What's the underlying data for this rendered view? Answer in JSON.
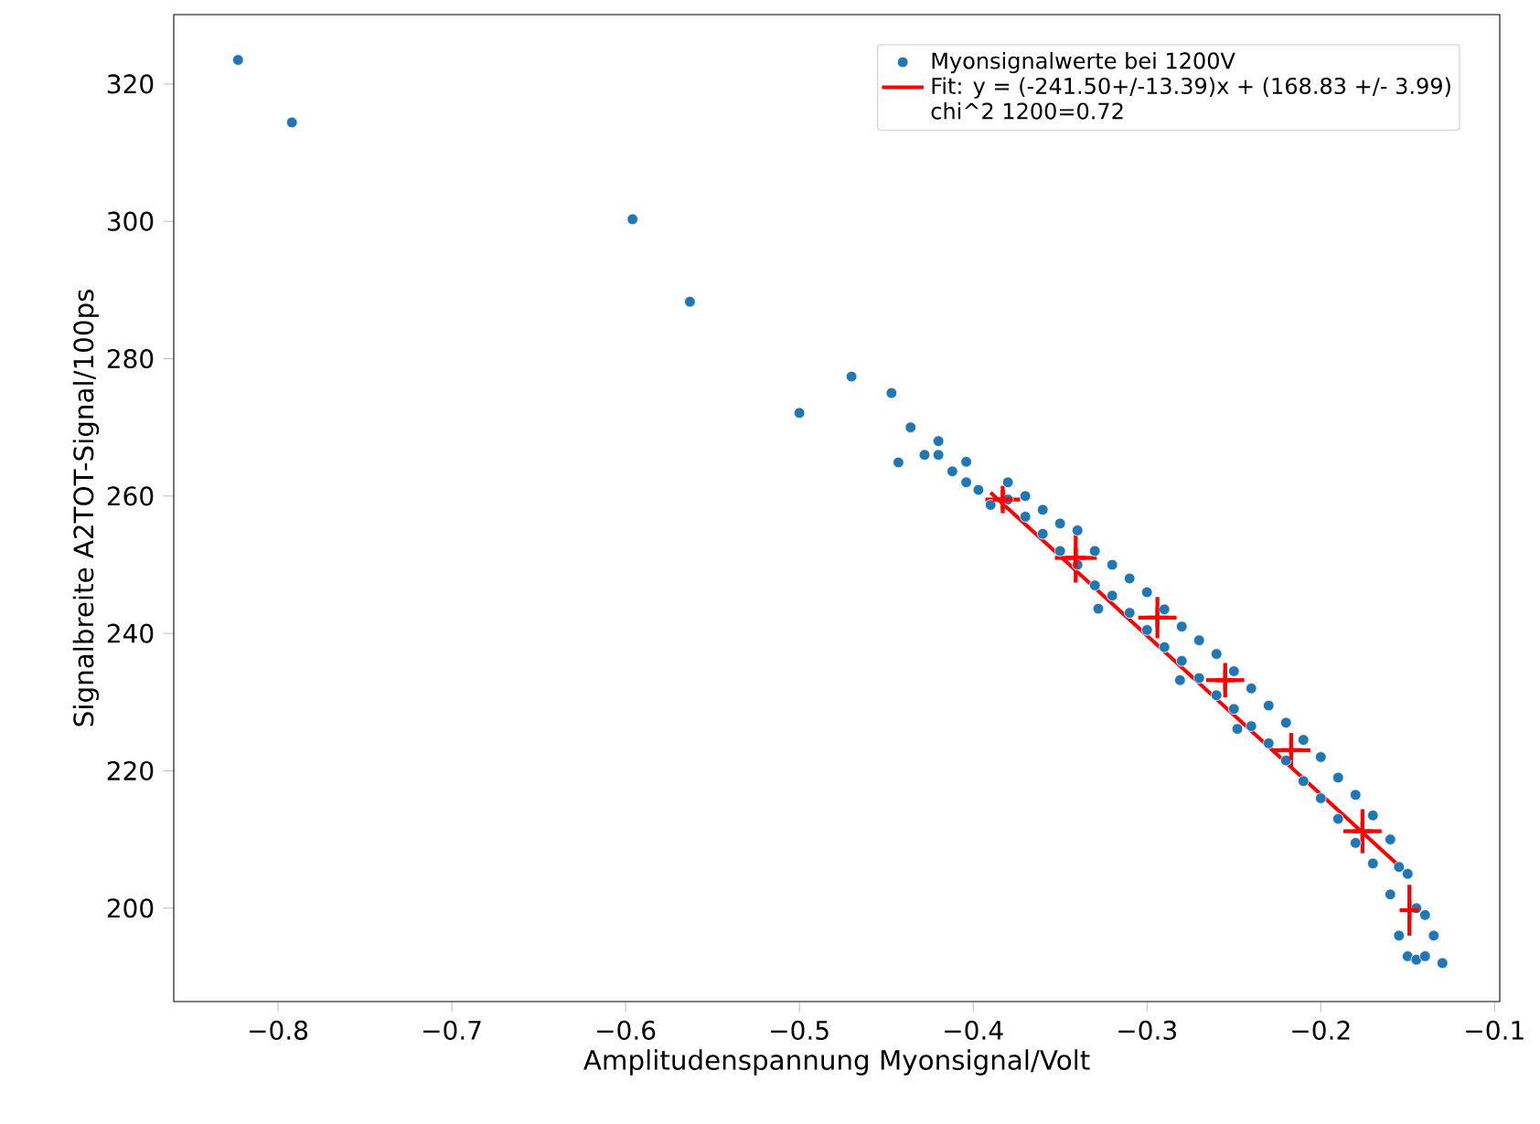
{
  "chart_data": {
    "type": "scatter",
    "xlabel": "Amplitudenspannung Myonsignal/Volt",
    "ylabel": "Signalbreite A2TOT-Signal/100ps",
    "xlim": [
      -0.86,
      -0.097
    ],
    "ylim": [
      186.4,
      330.1
    ],
    "xticks": [
      {
        "value": -0.8,
        "label": "−0.8"
      },
      {
        "value": -0.7,
        "label": "−0.7"
      },
      {
        "value": -0.6,
        "label": "−0.6"
      },
      {
        "value": -0.5,
        "label": "−0.5"
      },
      {
        "value": -0.4,
        "label": "−0.4"
      },
      {
        "value": -0.3,
        "label": "−0.3"
      },
      {
        "value": -0.2,
        "label": "−0.2"
      },
      {
        "value": -0.1,
        "label": "−0.1"
      }
    ],
    "yticks": [
      200,
      220,
      240,
      260,
      280,
      300,
      320
    ],
    "legend": "top right",
    "grid": false,
    "annotations": [
      "chi^2 1200=0.72"
    ],
    "series": [
      {
        "name": "Myonsignalwerte bei 1200V",
        "marker": "circle",
        "color": "#1f77b4",
        "x": [
          -0.823,
          -0.792,
          -0.596,
          -0.563,
          -0.5,
          -0.47,
          -0.447,
          -0.436,
          -0.443,
          -0.428,
          -0.42,
          -0.42,
          -0.412,
          -0.404,
          -0.404,
          -0.397,
          -0.39,
          -0.38,
          -0.38,
          -0.37,
          -0.37,
          -0.36,
          -0.36,
          -0.35,
          -0.35,
          -0.34,
          -0.34,
          -0.33,
          -0.33,
          -0.328,
          -0.32,
          -0.32,
          -0.31,
          -0.31,
          -0.3,
          -0.3,
          -0.29,
          -0.29,
          -0.28,
          -0.28,
          -0.281,
          -0.27,
          -0.27,
          -0.26,
          -0.26,
          -0.25,
          -0.25,
          -0.248,
          -0.24,
          -0.24,
          -0.23,
          -0.23,
          -0.22,
          -0.22,
          -0.21,
          -0.21,
          -0.2,
          -0.2,
          -0.19,
          -0.19,
          -0.18,
          -0.18,
          -0.17,
          -0.17,
          -0.16,
          -0.16,
          -0.155,
          -0.155,
          -0.15,
          -0.15,
          -0.145,
          -0.145,
          -0.14,
          -0.14,
          -0.135,
          -0.13
        ],
        "values": [
          323.5,
          314.4,
          300.3,
          288.3,
          272.1,
          277.4,
          275,
          270,
          264.9,
          266,
          268,
          266,
          263.6,
          265,
          262,
          260.9,
          258.7,
          262,
          259.5,
          260,
          257,
          258,
          254.5,
          256,
          252,
          255,
          250,
          252,
          247,
          243.6,
          250,
          245.5,
          248,
          243,
          246,
          240.5,
          243.5,
          238,
          241,
          236,
          233.2,
          239,
          233.5,
          237,
          231,
          234.5,
          229,
          226.1,
          232,
          226.5,
          229.5,
          224,
          227,
          221.5,
          224.5,
          218.5,
          222,
          216,
          219,
          213,
          216.5,
          209.5,
          213.5,
          206.5,
          210,
          202,
          206,
          196,
          205,
          193,
          200,
          192.5,
          199,
          193,
          196,
          192
        ]
      },
      {
        "name": "Fit: y = (-241.50+/-13.39)x + (168.83 +/- 3.99)",
        "type": "line",
        "marker": "none",
        "line_style": "solid",
        "color": "#ff0000",
        "x": [
          -0.39,
          -0.15
        ],
        "values": [
          260.5,
          205
        ]
      },
      {
        "type": "scatter",
        "marker": "cross",
        "color": "#ff0000",
        "x": [
          -0.383,
          -0.341,
          -0.294,
          -0.255,
          -0.217,
          -0.176,
          -0.149
        ],
        "values": [
          259.5,
          251,
          242.3,
          233.2,
          223,
          211.2,
          199.7
        ],
        "errors": [
          2.0,
          3.6,
          3.0,
          2.5,
          2.5,
          3.2,
          3.7
        ],
        "xerrors": [
          0.01,
          0.012,
          0.011,
          0.011,
          0.011,
          0.011,
          null
        ]
      }
    ]
  }
}
